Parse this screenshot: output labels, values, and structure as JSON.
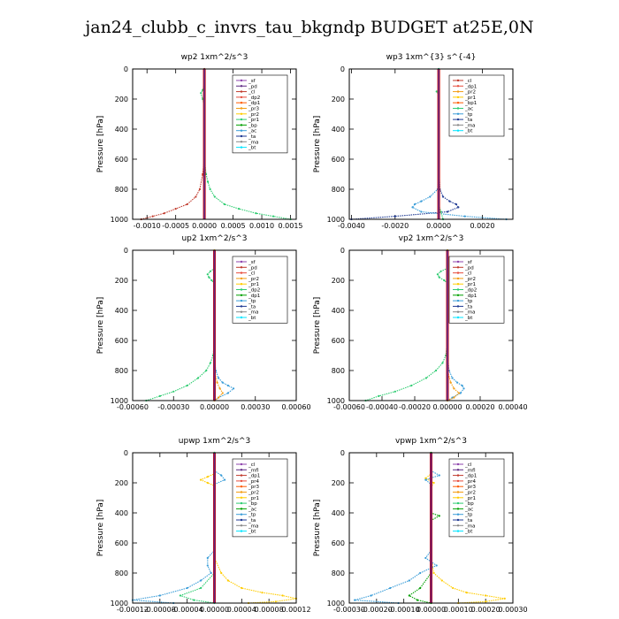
{
  "title": "jan24_clubb_c_invrs_tau_bkgndp  BUDGET at25E,0N",
  "chart_data": [
    {
      "type": "line",
      "title": "wp2   1xm^2/s^3",
      "ylabel": "Pressure [hPa]",
      "ylim": [
        1000,
        0
      ],
      "y_ticks": [
        0,
        200,
        400,
        600,
        800,
        1000
      ],
      "xlim": [
        -0.00125,
        0.0016
      ],
      "x_ticks": [
        -0.001,
        -0.0005,
        0.0,
        0.0005,
        0.001,
        0.0015
      ],
      "x_tick_labels": [
        "-0.0010",
        "-0.0005",
        "0.0000",
        "0.0005",
        "0.0010",
        "0.0015"
      ],
      "legend": [
        "_sf",
        "_pd",
        "_cl",
        "_dp2",
        "_dp1",
        "_pr3",
        "_pr2",
        "_pr1",
        "_bp",
        "_ac",
        "_ta",
        "_ma",
        "_bt"
      ],
      "legend_colors": [
        "#8e44ad",
        "#5e2a84",
        "#c0392b",
        "#e74c3c",
        "#ff5a00",
        "#f39c12",
        "#ffcc00",
        "#2ecc71",
        "#00a000",
        "#3a9dd8",
        "#1f3a93",
        "#888888",
        "#00e5ff"
      ],
      "series": [
        {
          "name": "_pr1",
          "color": "#2ecc71",
          "p": [
            0,
            100,
            140,
            160,
            200,
            250,
            300,
            400,
            500,
            600,
            700,
            750,
            800,
            850,
            900,
            930,
            960,
            980,
            1000
          ],
          "v": [
            0,
            0,
            -3e-05,
            -6e-05,
            -3e-05,
            0,
            0,
            0,
            0,
            0,
            3e-05,
            6e-05,
            0.0001,
            0.00018,
            0.00035,
            0.0006,
            0.0009,
            0.0012,
            0.0015
          ]
        },
        {
          "name": "_pr3",
          "color": "#c0392b",
          "p": [
            0,
            200,
            400,
            600,
            700,
            800,
            850,
            900,
            930,
            960,
            980,
            1000
          ],
          "v": [
            0,
            0,
            0,
            0,
            -3e-05,
            -8e-05,
            -0.00015,
            -0.0003,
            -0.0005,
            -0.0007,
            -0.0009,
            -0.0011
          ]
        },
        {
          "name": "_bt",
          "color": "#cc0000",
          "p": [
            0,
            1000
          ],
          "v": [
            0,
            0
          ],
          "width": 3
        }
      ]
    },
    {
      "type": "line",
      "title": "wp3   1xm^{3} s^{-4}",
      "ylabel": "Pressure [hPa]",
      "ylim": [
        1000,
        0
      ],
      "y_ticks": [
        0,
        200,
        400,
        600,
        800,
        1000
      ],
      "xlim": [
        -0.0041,
        0.0034
      ],
      "x_ticks": [
        -0.004,
        -0.002,
        0.0,
        0.002
      ],
      "x_tick_labels": [
        "-0.0040",
        "-0.0020",
        "0.0000",
        "0.0020"
      ],
      "legend": [
        "_cl",
        "_dp1",
        "_pr2",
        "_pr1",
        "_bp1",
        "_ac",
        "_tp",
        "_ta",
        "_ma",
        "_bt"
      ],
      "legend_colors": [
        "#c0392b",
        "#e74c3c",
        "#f39c12",
        "#ffcc00",
        "#ff5a00",
        "#2ecc71",
        "#3a9dd8",
        "#1f3a93",
        "#888888",
        "#00e5ff"
      ],
      "series": [
        {
          "name": "_ta",
          "color": "#1f3a93",
          "p": [
            0,
            600,
            800,
            850,
            880,
            900,
            920,
            950,
            980,
            1000
          ],
          "v": [
            0,
            0,
            5e-05,
            0.0002,
            0.0005,
            0.0008,
            0.0009,
            0.0004,
            -0.002,
            -0.004
          ]
        },
        {
          "name": "_tp",
          "color": "#3a9dd8",
          "p": [
            0,
            700,
            800,
            850,
            880,
            900,
            920,
            950,
            980,
            1000
          ],
          "v": [
            0,
            0,
            -5e-05,
            -0.0004,
            -0.0008,
            -0.0011,
            -0.0012,
            -0.0008,
            0.0012,
            0.0031
          ]
        },
        {
          "name": "_ac",
          "color": "#2ecc71",
          "p": [
            0,
            130,
            150,
            170,
            900,
            950,
            1000
          ],
          "v": [
            0,
            0,
            -0.0001,
            0,
            0,
            0.0001,
            0.0002
          ]
        },
        {
          "name": "_bt",
          "color": "#cc0000",
          "p": [
            0,
            1000
          ],
          "v": [
            0,
            0
          ],
          "width": 3
        }
      ]
    },
    {
      "type": "line",
      "title": "up2   1xm^2/s^3",
      "ylabel": "Pressure [hPa]",
      "ylim": [
        1000,
        0
      ],
      "y_ticks": [
        0,
        200,
        400,
        600,
        800,
        1000
      ],
      "xlim": [
        -0.0006,
        0.0006
      ],
      "x_ticks": [
        -0.0006,
        -0.0003,
        0.0,
        0.0003,
        0.0006
      ],
      "x_tick_labels": [
        "-0.00060",
        "-0.00030",
        "0.00000",
        "0.00030",
        "0.00060"
      ],
      "legend": [
        "_sf",
        "_pd",
        "_cl",
        "_pr2",
        "_pr1",
        "_dp2",
        "_dp1",
        "_tp",
        "_ta",
        "_ma",
        "_bt"
      ],
      "legend_colors": [
        "#8e44ad",
        "#c0392b",
        "#e74c3c",
        "#f39c12",
        "#ffcc00",
        "#2ecc71",
        "#00a000",
        "#3a9dd8",
        "#1f3a93",
        "#888888",
        "#00e5ff"
      ],
      "series": [
        {
          "name": "_dp2",
          "color": "#2ecc71",
          "p": [
            0,
            120,
            140,
            160,
            180,
            200,
            220,
            400,
            600,
            700,
            750,
            800,
            850,
            900,
            940,
            970,
            1000
          ],
          "v": [
            0,
            0,
            -3e-05,
            -5e-05,
            -4e-05,
            -2e-05,
            0,
            0,
            0,
            -1e-05,
            -3e-05,
            -6e-05,
            -0.00012,
            -0.0002,
            -0.0003,
            -0.0004,
            -0.0005
          ]
        },
        {
          "name": "_tp",
          "color": "#3a9dd8",
          "p": [
            0,
            700,
            800,
            850,
            880,
            900,
            920,
            950,
            980,
            1000
          ],
          "v": [
            0,
            0,
            1e-05,
            3e-05,
            6e-05,
            0.0001,
            0.00014,
            0.0001,
            3e-05,
            0
          ]
        },
        {
          "name": "_pr2",
          "color": "#f39c12",
          "p": [
            0,
            800,
            880,
            920,
            950,
            980,
            1000
          ],
          "v": [
            0,
            0,
            2e-05,
            4e-05,
            6e-05,
            3e-05,
            0
          ]
        },
        {
          "name": "_bt",
          "color": "#cc0000",
          "p": [
            0,
            1000
          ],
          "v": [
            0,
            0
          ],
          "width": 3
        }
      ]
    },
    {
      "type": "line",
      "title": "vp2   1xm^2/s^3",
      "ylabel": "Pressure [hPa]",
      "ylim": [
        1000,
        0
      ],
      "y_ticks": [
        0,
        200,
        400,
        600,
        800,
        1000
      ],
      "xlim": [
        -0.0006,
        0.0004
      ],
      "x_ticks": [
        -0.0006,
        -0.0004,
        -0.0002,
        0.0,
        0.0002,
        0.0004
      ],
      "x_tick_labels": [
        "-0.00060",
        "-0.00040",
        "-0.00020",
        "0.00000",
        "0.00020",
        "0.00040"
      ],
      "legend": [
        "_sf",
        "_pd",
        "_cl",
        "_pr2",
        "_pr1",
        "_dp2",
        "_dp1",
        "_tp",
        "_ta",
        "_ma",
        "_bt"
      ],
      "legend_colors": [
        "#8e44ad",
        "#c0392b",
        "#e74c3c",
        "#f39c12",
        "#ffcc00",
        "#2ecc71",
        "#00a000",
        "#3a9dd8",
        "#1f3a93",
        "#888888",
        "#00e5ff"
      ],
      "series": [
        {
          "name": "_dp2",
          "color": "#2ecc71",
          "p": [
            0,
            120,
            140,
            160,
            180,
            200,
            220,
            400,
            600,
            700,
            750,
            800,
            850,
            900,
            940,
            970,
            1000
          ],
          "v": [
            0,
            0,
            -4e-05,
            -6e-05,
            -5e-05,
            -2e-05,
            0,
            0,
            0,
            -1e-05,
            -3e-05,
            -7e-05,
            -0.00013,
            -0.00022,
            -0.00032,
            -0.00042,
            -0.0005
          ]
        },
        {
          "name": "_tp",
          "color": "#3a9dd8",
          "p": [
            0,
            700,
            800,
            850,
            880,
            900,
            920,
            950,
            980,
            1000
          ],
          "v": [
            0,
            0,
            1e-05,
            3e-05,
            6e-05,
            9e-05,
            0.0001,
            8e-05,
            3e-05,
            0
          ]
        },
        {
          "name": "_pr2",
          "color": "#f39c12",
          "p": [
            0,
            800,
            880,
            920,
            950,
            980,
            1000
          ],
          "v": [
            0,
            0,
            2e-05,
            4e-05,
            7e-05,
            4e-05,
            0
          ]
        },
        {
          "name": "_bt",
          "color": "#cc0000",
          "p": [
            0,
            1000
          ],
          "v": [
            0,
            0
          ],
          "width": 3
        }
      ]
    },
    {
      "type": "line",
      "title": "upwp   1xm^2/s^3",
      "ylabel": "Pressure [hPa]",
      "ylim": [
        1000,
        0
      ],
      "y_ticks": [
        0,
        200,
        400,
        600,
        800,
        1000
      ],
      "xlim": [
        -0.00012,
        0.00012
      ],
      "x_ticks": [
        -0.00012,
        -8e-05,
        -4e-05,
        0.0,
        4e-05,
        8e-05,
        0.00012
      ],
      "x_tick_labels": [
        "-0.00012",
        "-0.00008",
        "-0.00004",
        "0.00000",
        "0.00004",
        "0.00008",
        "0.00012"
      ],
      "legend": [
        "_cl",
        "_mfl",
        "_dp1",
        "_pr4",
        "_pr3",
        "_pr2",
        "_pr1",
        "_bp",
        "_ac",
        "_tp",
        "_ta",
        "_ma",
        "_bt"
      ],
      "legend_colors": [
        "#8e44ad",
        "#5e2a84",
        "#c0392b",
        "#e74c3c",
        "#ff5a00",
        "#f39c12",
        "#ffcc00",
        "#2ecc71",
        "#00a000",
        "#3a9dd8",
        "#1f3a93",
        "#888888",
        "#00e5ff"
      ],
      "series": [
        {
          "name": "_pr1",
          "color": "#ffcc00",
          "p": [
            0,
            140,
            160,
            180,
            200,
            220,
            400,
            700,
            800,
            850,
            900,
            930,
            950,
            970,
            990,
            1000
          ],
          "v": [
            0,
            0,
            -1e-05,
            -2e-05,
            -1e-05,
            0,
            0,
            0,
            1e-05,
            2e-05,
            4e-05,
            7e-05,
            0.0001,
            0.00012,
            9e-05,
            5e-05
          ]
        },
        {
          "name": "_tp",
          "color": "#3a9dd8",
          "p": [
            0,
            120,
            150,
            180,
            210,
            400,
            650,
            700,
            750,
            800,
            850,
            900,
            950,
            980,
            1000
          ],
          "v": [
            0,
            0,
            1e-05,
            1.5e-05,
            0,
            0,
            0,
            -1e-05,
            -1e-05,
            -5e-06,
            -2e-05,
            -4e-05,
            -8e-05,
            -0.00012,
            -6e-05
          ]
        },
        {
          "name": "_ac",
          "color": "#2ecc71",
          "p": [
            0,
            800,
            900,
            950,
            980,
            1000
          ],
          "v": [
            0,
            0,
            -2e-05,
            -5e-05,
            -3e-05,
            0
          ]
        },
        {
          "name": "_bt",
          "color": "#cc0000",
          "p": [
            0,
            1000
          ],
          "v": [
            0,
            0
          ],
          "width": 3
        }
      ]
    },
    {
      "type": "line",
      "title": "vpwp   1xm^2/s^3",
      "ylabel": "Pressure [hPa]",
      "ylim": [
        1000,
        0
      ],
      "y_ticks": [
        0,
        200,
        400,
        600,
        800,
        1000
      ],
      "xlim": [
        -0.0003,
        0.0003
      ],
      "x_ticks": [
        -0.0003,
        -0.0002,
        -0.0001,
        0.0,
        0.0001,
        0.0002,
        0.0003
      ],
      "x_tick_labels": [
        "-0.00030",
        "-0.00020",
        "-0.00010",
        "0.00000",
        "0.00010",
        "0.00020",
        "0.00030"
      ],
      "legend": [
        "_cl",
        "_mfl",
        "_dp1",
        "_pr4",
        "_pr3",
        "_pr2",
        "_pr1",
        "_bp",
        "_ac",
        "_tp",
        "_ta",
        "_ma",
        "_bt"
      ],
      "legend_colors": [
        "#8e44ad",
        "#5e2a84",
        "#c0392b",
        "#e74c3c",
        "#ff5a00",
        "#f39c12",
        "#ffcc00",
        "#2ecc71",
        "#00a000",
        "#3a9dd8",
        "#1f3a93",
        "#888888",
        "#00e5ff"
      ],
      "series": [
        {
          "name": "_pr1",
          "color": "#ffcc00",
          "p": [
            0,
            140,
            170,
            200,
            230,
            400,
            700,
            800,
            850,
            900,
            930,
            950,
            970,
            990,
            1000
          ],
          "v": [
            0,
            0,
            -2e-05,
            1e-05,
            0,
            0,
            0,
            1e-05,
            4e-05,
            8e-05,
            0.00013,
            0.0002,
            0.00027,
            0.0002,
            0.0001
          ]
        },
        {
          "name": "_tp",
          "color": "#3a9dd8",
          "p": [
            0,
            120,
            150,
            180,
            210,
            400,
            650,
            700,
            750,
            800,
            850,
            900,
            950,
            980,
            1000
          ],
          "v": [
            0,
            0,
            3e-05,
            -2e-05,
            0,
            0,
            0,
            -2e-05,
            2e-05,
            -4e-05,
            -8e-05,
            -0.00015,
            -0.00022,
            -0.00028,
            -0.00012
          ]
        },
        {
          "name": "_ac",
          "color": "#00a000",
          "p": [
            0,
            400,
            420,
            450,
            800,
            900,
            950,
            980,
            1000
          ],
          "v": [
            0,
            0,
            3e-05,
            0,
            0,
            -4e-05,
            -8e-05,
            -5e-05,
            0
          ]
        },
        {
          "name": "_bt",
          "color": "#cc0000",
          "p": [
            0,
            1000
          ],
          "v": [
            0,
            0
          ],
          "width": 3
        }
      ]
    }
  ]
}
